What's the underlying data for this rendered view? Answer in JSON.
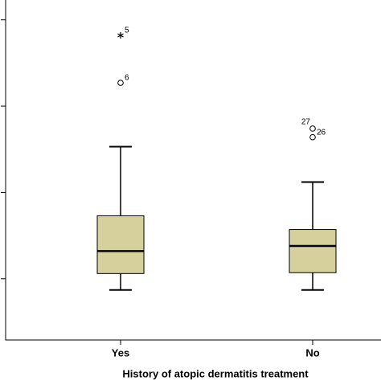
{
  "chart_data": {
    "type": "box",
    "x_label": "History of atopic dermatitis treatment",
    "categories": [
      "Yes",
      "No"
    ],
    "color": "#d5d09c",
    "whisker_low": [
      0.87,
      0.87
    ],
    "q1": [
      1.06,
      1.07
    ],
    "median": [
      1.32,
      1.38
    ],
    "q3": [
      1.73,
      1.57
    ],
    "whisker_high": [
      2.53,
      2.12
    ],
    "outliers": [
      [
        {
          "value": 3.82,
          "label": "5",
          "marker": "star"
        },
        {
          "value": 3.27,
          "label": "6",
          "marker": "circle"
        }
      ],
      [
        {
          "value": 2.74,
          "label": "27",
          "marker": "circle"
        },
        {
          "value": 2.64,
          "label": "26",
          "marker": "circle"
        }
      ]
    ],
    "ylim": [
      0.29,
      4.23
    ],
    "yticks": [
      1,
      2,
      3,
      4
    ]
  }
}
